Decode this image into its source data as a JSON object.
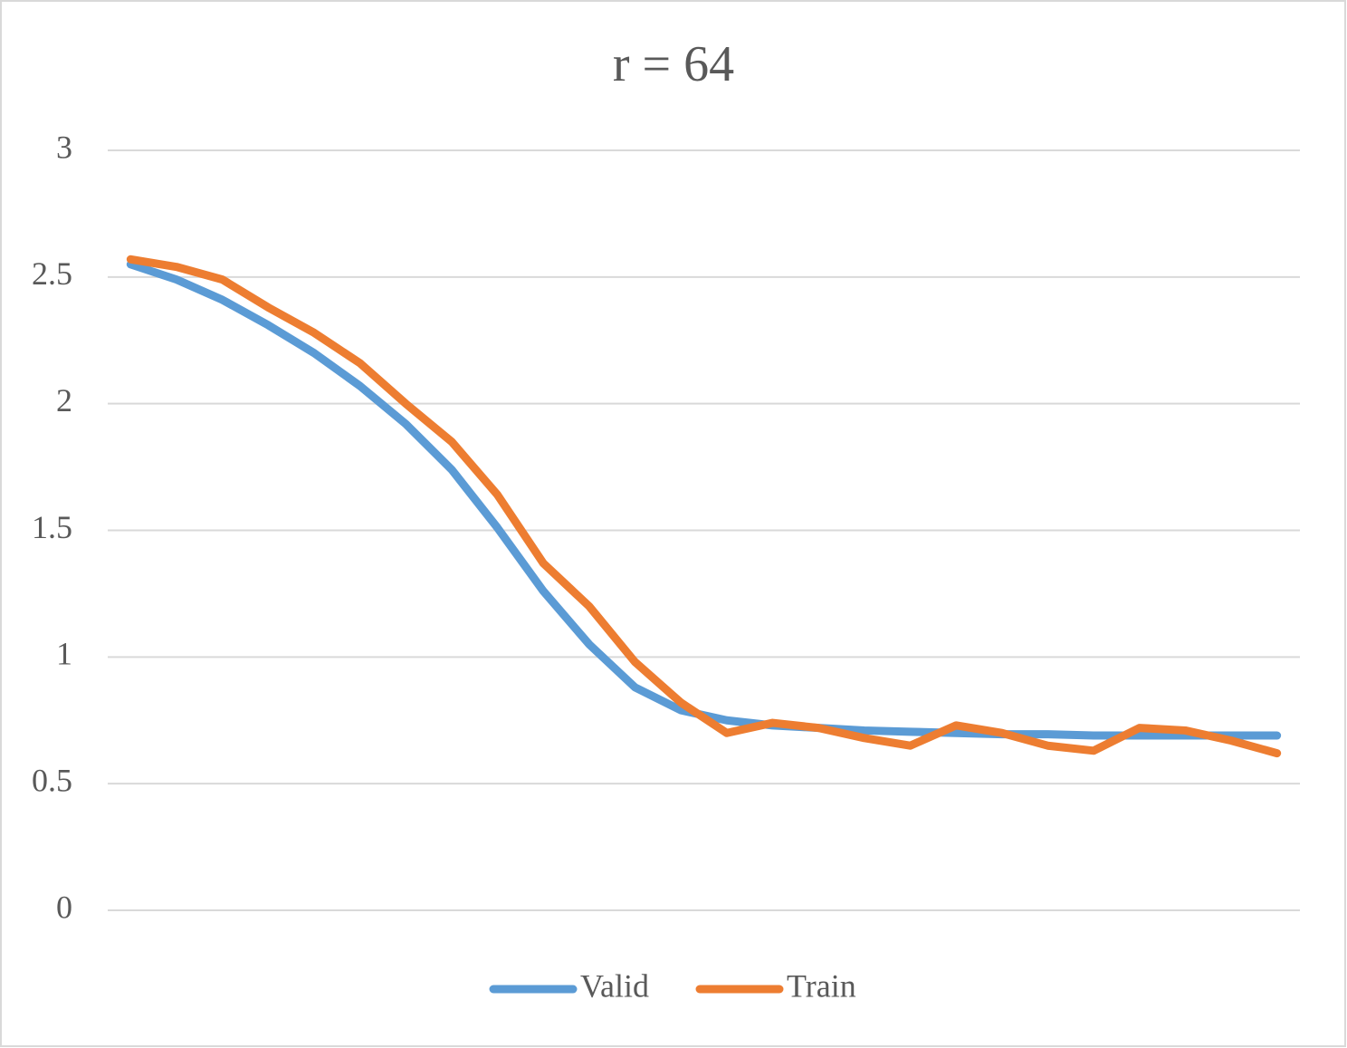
{
  "chart_data": {
    "type": "line",
    "title": "r = 64",
    "categories": [
      null,
      null,
      null,
      null,
      null,
      null,
      null,
      null,
      null,
      null,
      null,
      null,
      null,
      null,
      null,
      null,
      null,
      null,
      null,
      null,
      null,
      null,
      null,
      null,
      null,
      null
    ],
    "series": [
      {
        "name": "Valid",
        "color": "#5b9bd5",
        "values": [
          2.55,
          2.49,
          2.41,
          2.31,
          2.2,
          2.07,
          1.92,
          1.74,
          1.51,
          1.26,
          1.05,
          0.88,
          0.79,
          0.75,
          0.73,
          0.72,
          0.71,
          0.705,
          0.7,
          0.695,
          0.695,
          0.69,
          0.69,
          0.69,
          0.69,
          0.69
        ]
      },
      {
        "name": "Train",
        "color": "#ed7d31",
        "values": [
          2.57,
          2.54,
          2.49,
          2.38,
          2.28,
          2.16,
          2.0,
          1.85,
          1.64,
          1.37,
          1.2,
          0.98,
          0.82,
          0.7,
          0.74,
          0.72,
          0.68,
          0.65,
          0.73,
          0.7,
          0.65,
          0.63,
          0.72,
          0.71,
          0.67,
          0.62
        ]
      }
    ],
    "ylim": [
      0,
      3
    ],
    "yticks": [
      0,
      0.5,
      1,
      1.5,
      2,
      2.5,
      3
    ],
    "grid": true,
    "legend": "bottom"
  }
}
